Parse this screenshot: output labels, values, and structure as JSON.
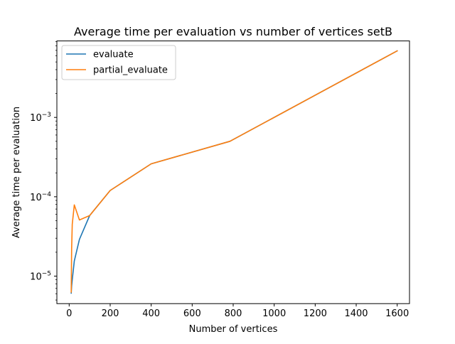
{
  "chart_data": {
    "type": "line",
    "title": "Average time per evaluation vs number of vertices setB",
    "xlabel": "Number of vertices",
    "ylabel": "Average time per evaluation",
    "xlim": [
      -60,
      1660
    ],
    "ylim": [
      4.5e-06,
      0.0092
    ],
    "yscale": "log",
    "grid": false,
    "legend_position": "top-left",
    "x_ticks": [
      0,
      200,
      400,
      600,
      800,
      1000,
      1200,
      1400,
      1600
    ],
    "x_tick_labels": [
      "0",
      "200",
      "400",
      "600",
      "800",
      "1000",
      "1200",
      "1400",
      "1600"
    ],
    "y_ticks": [
      1e-05,
      0.0001,
      0.001
    ],
    "y_tick_labels": [
      {
        "base": "10",
        "exp": "−5"
      },
      {
        "base": "10",
        "exp": "−4"
      },
      {
        "base": "10",
        "exp": "−3"
      }
    ],
    "series": [
      {
        "name": "evaluate",
        "color": "#1f77b4",
        "x": [
          10,
          12,
          15,
          25,
          50,
          100,
          200,
          400,
          784,
          1600
        ],
        "y": [
          6.1e-06,
          7.5e-06,
          9e-06,
          1.55e-05,
          2.9e-05,
          5.8e-05,
          0.00012,
          0.00026,
          0.0005,
          0.0069
        ]
      },
      {
        "name": "partial_evaluate",
        "color": "#ff7f0e",
        "x": [
          10,
          12,
          15,
          25,
          50,
          100,
          200,
          400,
          784,
          1600
        ],
        "y": [
          6.3e-06,
          2.2e-05,
          4.5e-05,
          7.9e-05,
          5.1e-05,
          5.8e-05,
          0.00012,
          0.00026,
          0.0005,
          0.0069
        ]
      }
    ]
  }
}
